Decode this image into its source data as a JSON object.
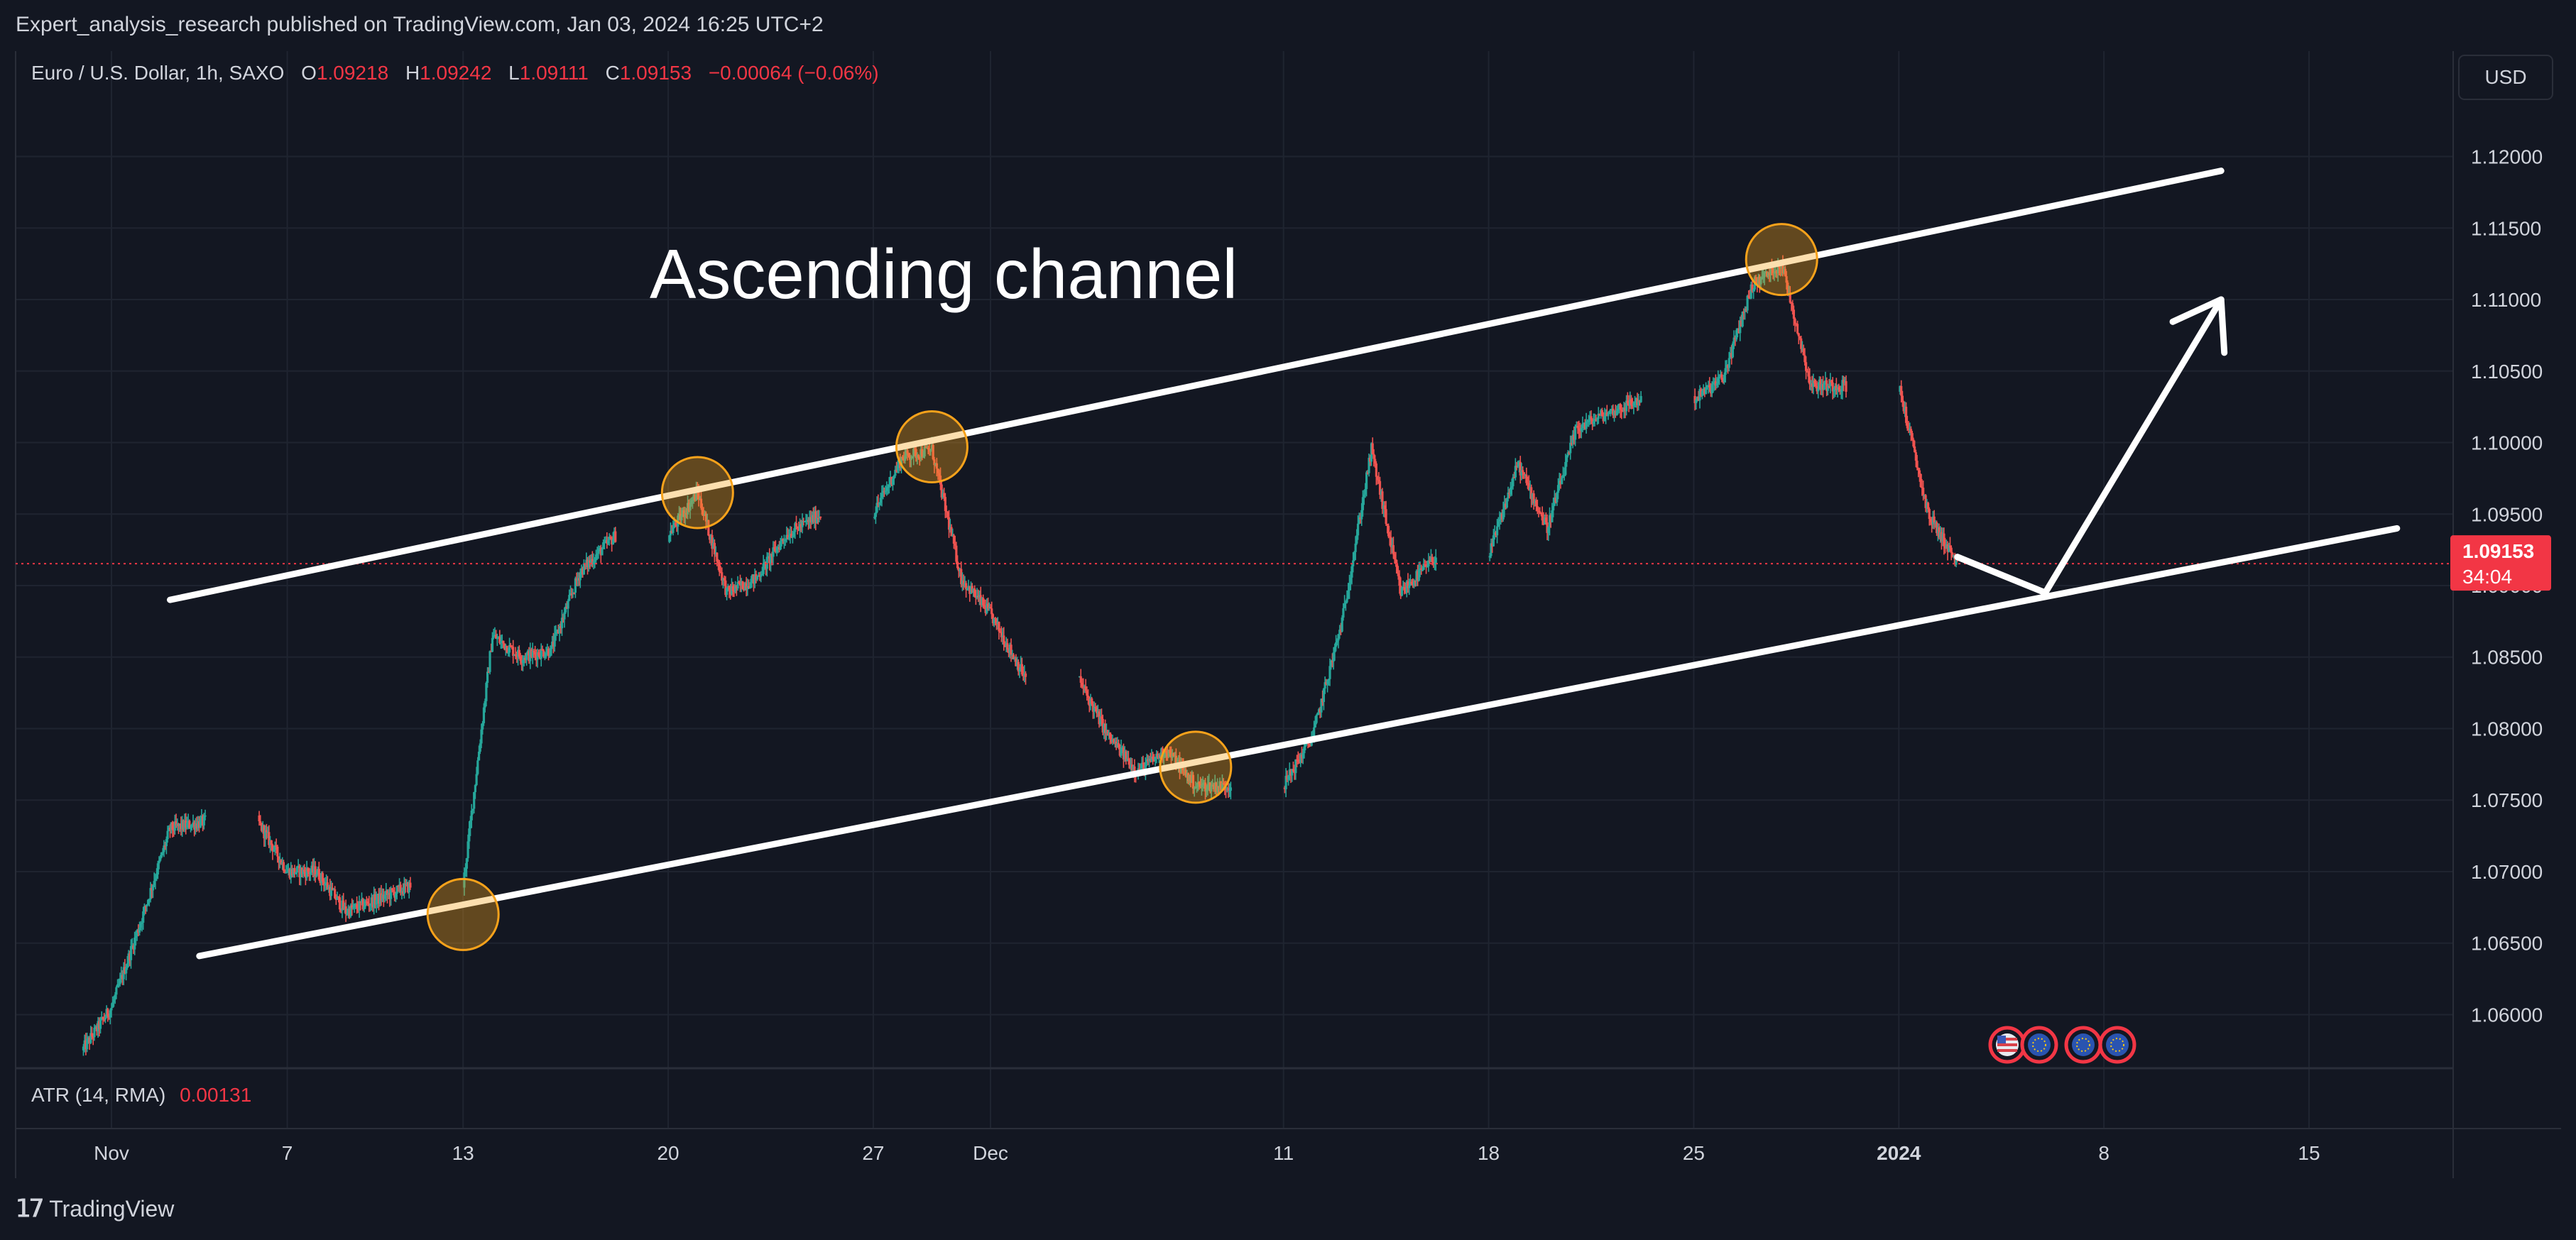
{
  "publisher": "Expert_analysis_research published on TradingView.com, Jan 03, 2024 16:25 UTC+2",
  "symbol": {
    "name": "Euro / U.S. Dollar, 1h, SAXO",
    "o_label": "O",
    "o_value": "1.09218",
    "h_label": "H",
    "h_value": "1.09242",
    "l_label": "L",
    "l_value": "1.09111",
    "c_label": "C",
    "c_value": "1.09153",
    "change": "−0.00064 (−0.06%)"
  },
  "currency_button": "USD",
  "price_tag": {
    "value": "1.09153",
    "countdown": "34:04"
  },
  "indicator": {
    "name": "ATR (14, RMA)",
    "value": "0.00131"
  },
  "brand": "TradingView",
  "colors": {
    "background": "#131722",
    "grid": "#1f2430",
    "text": "#d1d4dc",
    "up": "#26a69a",
    "down": "#ef5350",
    "accent_red": "#f23645",
    "marker": "#f7a21b"
  },
  "chart_data": {
    "type": "candlestick",
    "title": "Ascending channel",
    "y_axis": {
      "range": [
        1.0565,
        1.1235
      ],
      "ticks": [
        "1.12000",
        "1.11500",
        "1.11000",
        "1.10500",
        "1.10000",
        "1.09500",
        "1.09000",
        "1.08500",
        "1.08000",
        "1.07500",
        "1.07000",
        "1.06500",
        "1.06000"
      ]
    },
    "x_axis": {
      "ticks": [
        {
          "label": "Nov",
          "date": "2023-11-01"
        },
        {
          "label": "7",
          "date": "2023-11-07"
        },
        {
          "label": "13",
          "date": "2023-11-13"
        },
        {
          "label": "20",
          "date": "2023-11-20"
        },
        {
          "label": "27",
          "date": "2023-11-27"
        },
        {
          "label": "Dec",
          "date": "2023-12-01"
        },
        {
          "label": "11",
          "date": "2023-12-11"
        },
        {
          "label": "18",
          "date": "2023-12-18"
        },
        {
          "label": "25",
          "date": "2023-12-25"
        },
        {
          "label": "2024",
          "date": "2024-01-01"
        },
        {
          "label": "8",
          "date": "2024-01-08"
        },
        {
          "label": "15",
          "date": "2024-01-15"
        }
      ]
    },
    "price_path": [
      {
        "date": "2023-10-31",
        "value": 1.0575
      },
      {
        "date": "2023-11-01",
        "value": 1.0605
      },
      {
        "date": "2023-11-02",
        "value": 1.0665
      },
      {
        "date": "2023-11-03",
        "value": 1.073
      },
      {
        "date": "2023-11-06",
        "value": 1.0735
      },
      {
        "date": "2023-11-07",
        "value": 1.07
      },
      {
        "date": "2023-11-08",
        "value": 1.07
      },
      {
        "date": "2023-11-09",
        "value": 1.0672
      },
      {
        "date": "2023-11-10",
        "value": 1.068
      },
      {
        "date": "2023-11-13",
        "value": 1.069
      },
      {
        "date": "2023-11-14",
        "value": 1.0865
      },
      {
        "date": "2023-11-15",
        "value": 1.085
      },
      {
        "date": "2023-11-16",
        "value": 1.0855
      },
      {
        "date": "2023-11-17",
        "value": 1.091
      },
      {
        "date": "2023-11-20",
        "value": 1.0935
      },
      {
        "date": "2023-11-21",
        "value": 1.0965
      },
      {
        "date": "2023-11-22",
        "value": 1.0895
      },
      {
        "date": "2023-11-23",
        "value": 1.0905
      },
      {
        "date": "2023-11-24",
        "value": 1.0935
      },
      {
        "date": "2023-11-27",
        "value": 1.095
      },
      {
        "date": "2023-11-28",
        "value": 1.099
      },
      {
        "date": "2023-11-29",
        "value": 1.0995
      },
      {
        "date": "2023-11-30",
        "value": 1.0905
      },
      {
        "date": "2023-12-01",
        "value": 1.088
      },
      {
        "date": "2023-12-04",
        "value": 1.0835
      },
      {
        "date": "2023-12-05",
        "value": 1.0795
      },
      {
        "date": "2023-12-06",
        "value": 1.077
      },
      {
        "date": "2023-12-07",
        "value": 1.0785
      },
      {
        "date": "2023-12-08",
        "value": 1.076
      },
      {
        "date": "2023-12-11",
        "value": 1.076
      },
      {
        "date": "2023-12-12",
        "value": 1.0795
      },
      {
        "date": "2023-12-13",
        "value": 1.0875
      },
      {
        "date": "2023-12-14",
        "value": 1.0995
      },
      {
        "date": "2023-12-15",
        "value": 1.0895
      },
      {
        "date": "2023-12-18",
        "value": 1.092
      },
      {
        "date": "2023-12-19",
        "value": 1.0985
      },
      {
        "date": "2023-12-20",
        "value": 1.094
      },
      {
        "date": "2023-12-21",
        "value": 1.101
      },
      {
        "date": "2023-12-22",
        "value": 1.102
      },
      {
        "date": "2023-12-25",
        "value": 1.103
      },
      {
        "date": "2023-12-26",
        "value": 1.1045
      },
      {
        "date": "2023-12-27",
        "value": 1.111
      },
      {
        "date": "2023-12-28",
        "value": 1.1125
      },
      {
        "date": "2023-12-29",
        "value": 1.104
      },
      {
        "date": "2024-01-01",
        "value": 1.104
      },
      {
        "date": "2024-01-02",
        "value": 1.095
      },
      {
        "date": "2024-01-03",
        "value": 1.0915
      }
    ],
    "annotations": {
      "upper_channel": [
        {
          "date": "2023-11-03",
          "value": 1.089
        },
        {
          "date": "2024-01-12",
          "value": 1.119
        }
      ],
      "lower_channel": [
        {
          "date": "2023-11-04",
          "value": 1.0641
        },
        {
          "date": "2024-01-18",
          "value": 1.094
        }
      ],
      "arrow": [
        {
          "date": "2024-01-03",
          "value": 1.092
        },
        {
          "date": "2024-01-06",
          "value": 1.0895
        },
        {
          "date": "2024-01-12",
          "value": 1.11
        }
      ],
      "touch_points": [
        {
          "date": "2023-11-13",
          "value": 1.067
        },
        {
          "date": "2023-11-21",
          "value": 1.0965
        },
        {
          "date": "2023-11-29",
          "value": 1.0997
        },
        {
          "date": "2023-12-08",
          "value": 1.0773
        },
        {
          "date": "2023-12-28",
          "value": 1.1128
        }
      ]
    },
    "last_price": 1.09153,
    "grid": true
  }
}
